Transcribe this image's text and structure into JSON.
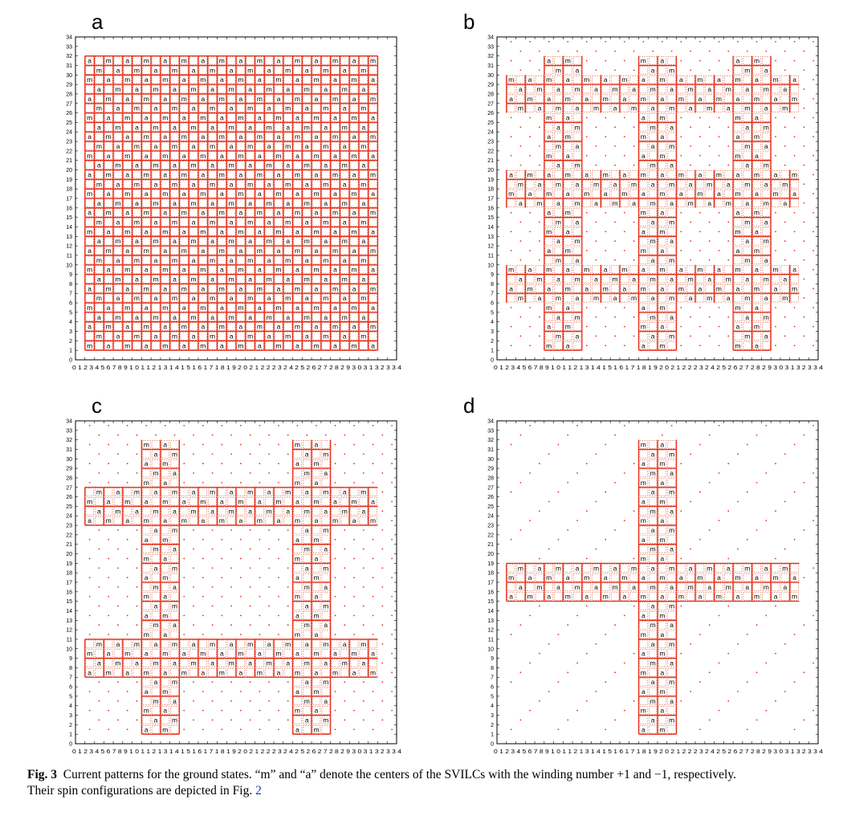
{
  "figure": {
    "panels": [
      {
        "letter": "a",
        "pattern": "full"
      },
      {
        "letter": "b",
        "pattern": "grid3"
      },
      {
        "letter": "c",
        "pattern": "grid2"
      },
      {
        "letter": "d",
        "pattern": "cross1"
      }
    ],
    "axis": {
      "min": 0,
      "max": 34,
      "x_tick_text": "0 1 2 3 4 5 6 7 8 9 1 0 1 1 2 1 3 1 4 1 5 1 6 1 7 1 8 1 9 2 0 2 1 2 2 2 3 2 4 2 5 2 6 2 7 2 8 2 9 3 0 3 1 3 2 3 3 4",
      "y_ticks": [
        "0",
        "1",
        "2",
        "3",
        "4",
        "5",
        "6",
        "7",
        "8",
        "9",
        "10",
        "11",
        "12",
        "13",
        "14",
        "15",
        "16",
        "17",
        "18",
        "19",
        "20",
        "21",
        "22",
        "23",
        "24",
        "25",
        "26",
        "27",
        "28",
        "29",
        "30",
        "31",
        "32",
        "33",
        "34"
      ]
    },
    "center_labels": {
      "m": "m",
      "a": "a"
    },
    "colors": {
      "current": "#e8301c",
      "frame": "#000000",
      "dashed": "#d9502f"
    }
  },
  "caption": {
    "label": "Fig. 3",
    "text_line1": "Current patterns for the ground states. “m” and “a” denote the centers of the SVILCs with the winding number +1 and −1, respectively.",
    "text_line2_prefix": "Their spin configurations are depicted in Fig.",
    "ref": "2"
  }
}
